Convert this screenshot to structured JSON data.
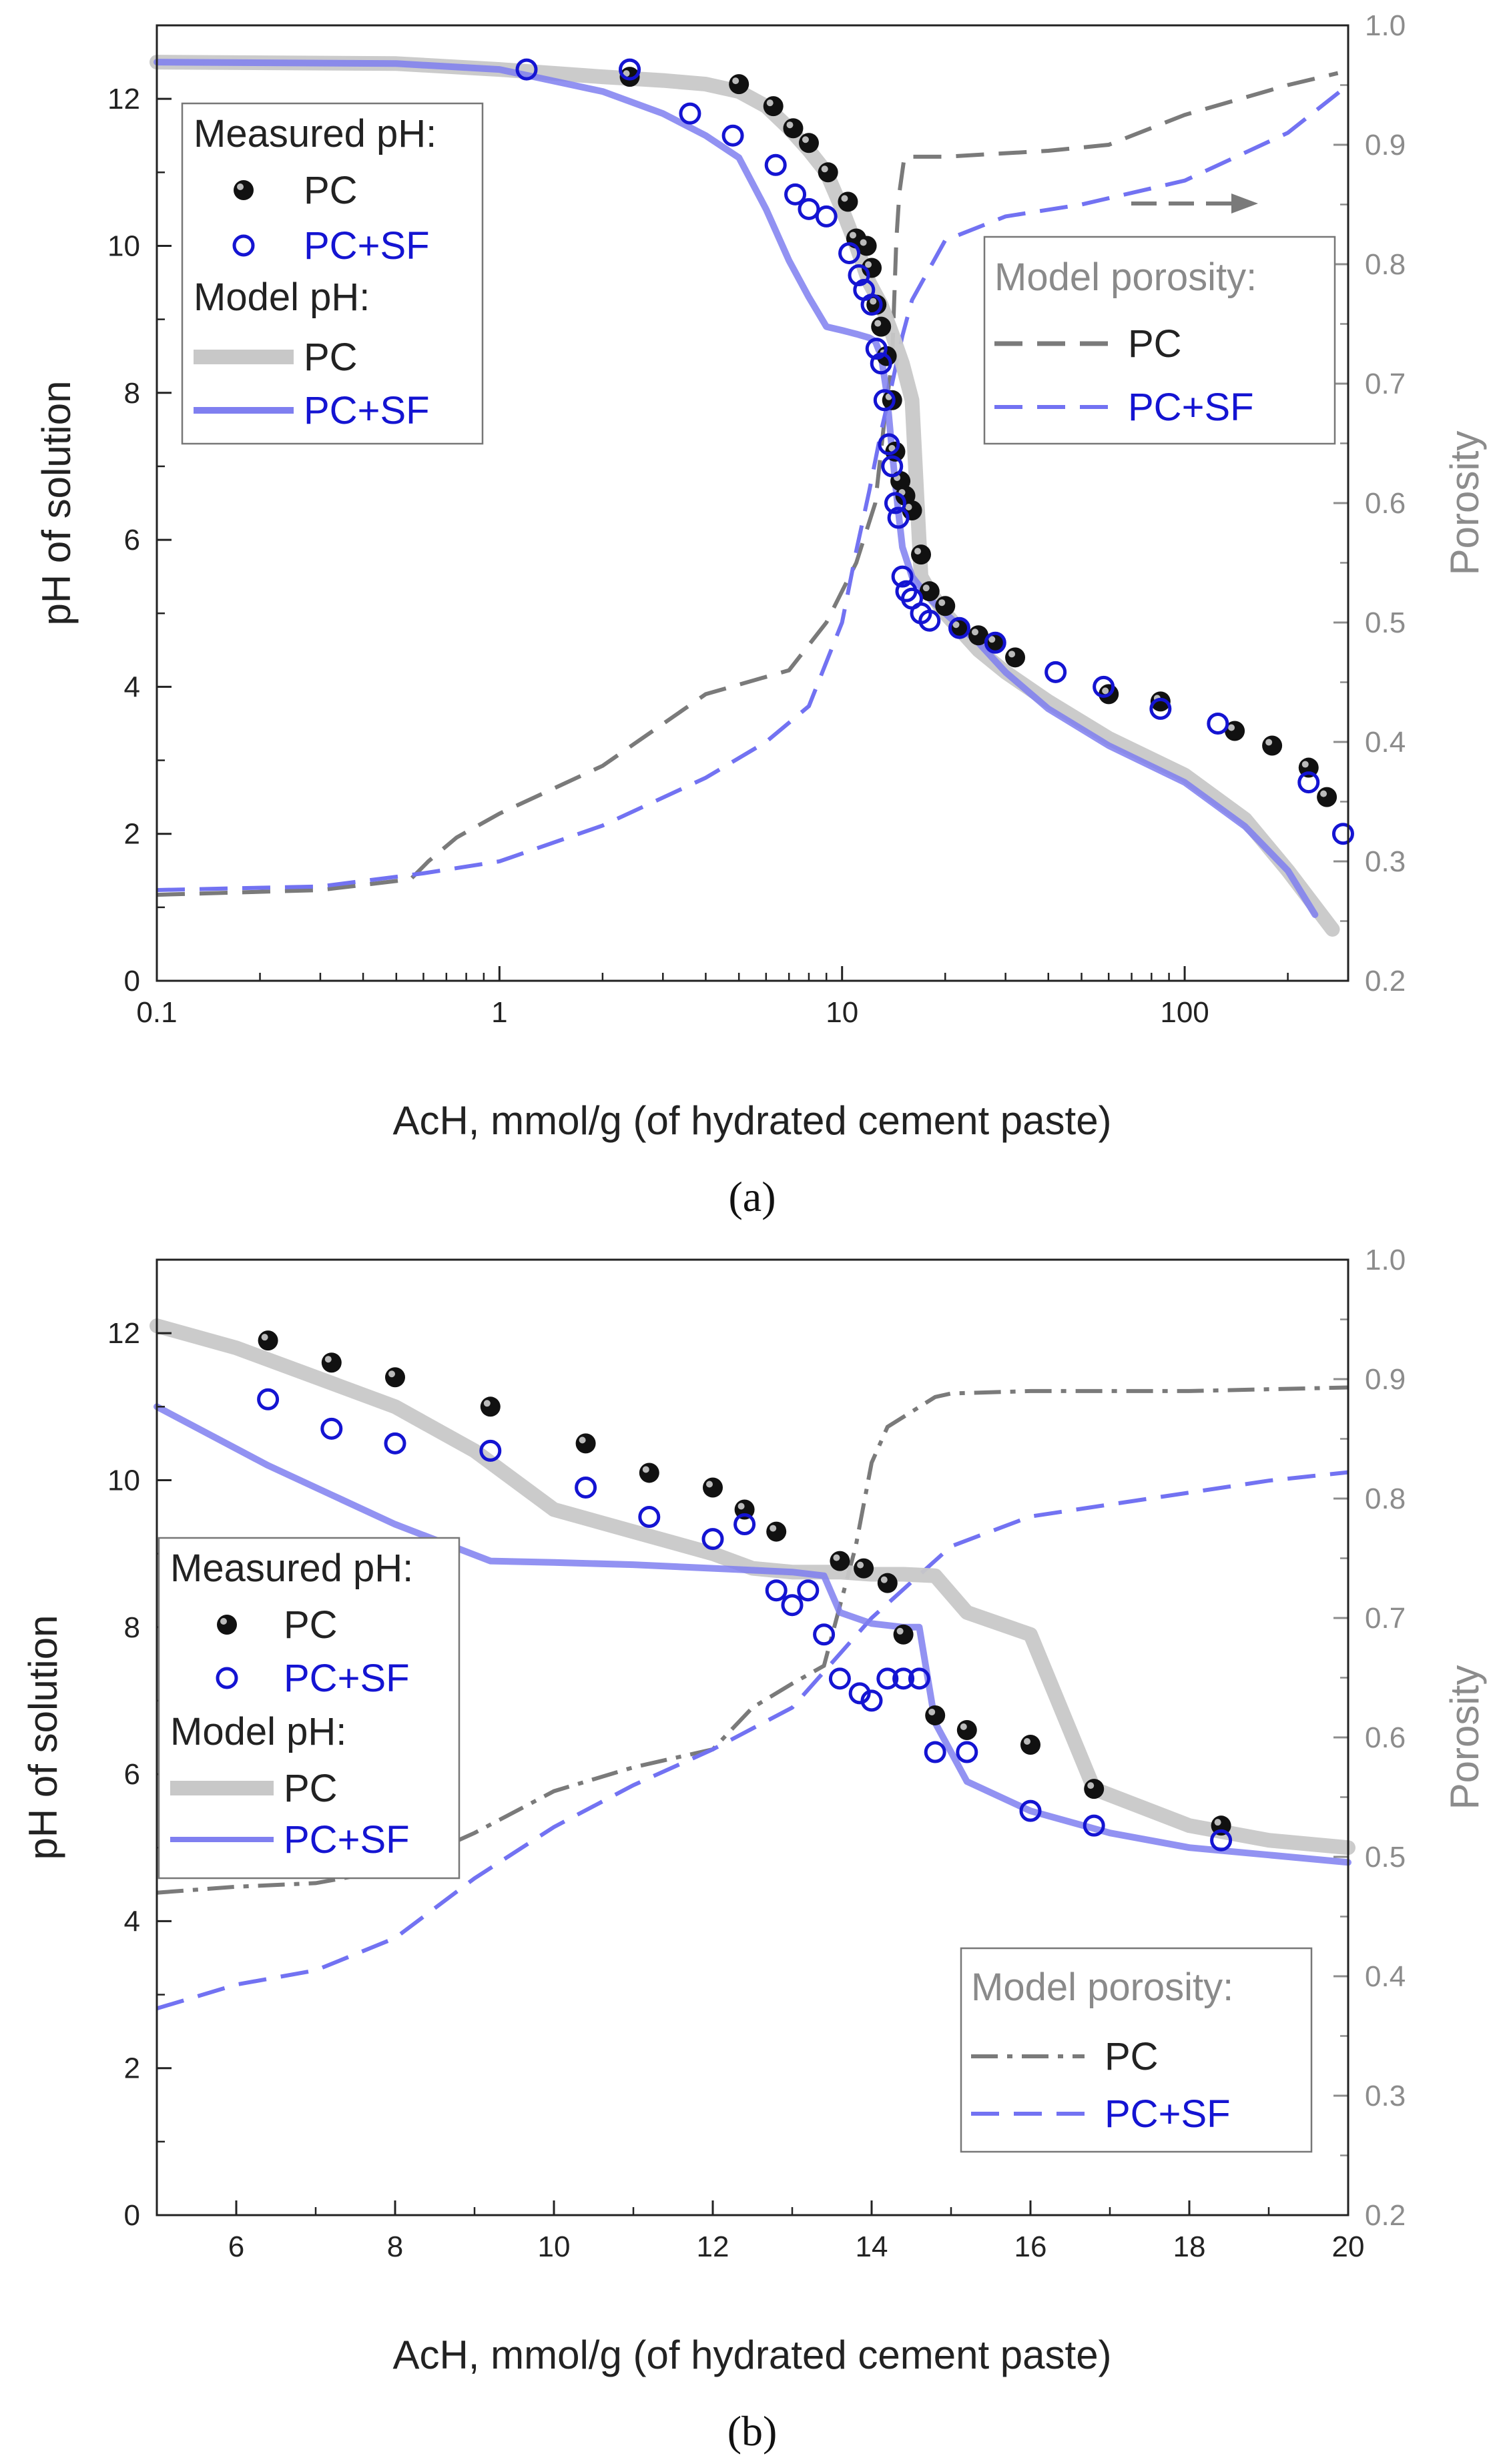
{
  "colors": {
    "pc_model": "#c8c8c8",
    "sf_model": "#7f7ff0",
    "pc_porosity": "#7a7a7a",
    "sf_porosity": "#7272f2",
    "sf_marker": "#1414d2",
    "right_axis": "#8c8c8c",
    "legend_gray": "#8a8a8a"
  },
  "chart_data": [
    {
      "type": "line",
      "panel_label": "(a)",
      "xlabel": "AcH, mmol/g (of hydrated cement paste)",
      "ylabel": "pH of solution",
      "y2label": "Porosity",
      "xscale": "log",
      "xlim": [
        0.1,
        300
      ],
      "ylim": [
        0,
        13
      ],
      "y2lim": [
        0.2,
        1.0
      ],
      "x_ticks": [
        0.1,
        1,
        10,
        100
      ],
      "x_tick_labels": [
        "0.1",
        "1",
        "10",
        "100"
      ],
      "y_ticks": [
        0,
        2,
        4,
        6,
        8,
        10,
        12
      ],
      "y2_ticks": [
        0.2,
        0.3,
        0.4,
        0.5,
        0.6,
        0.7,
        0.8,
        0.9,
        1.0
      ],
      "y2_tick_labels": [
        "0.2",
        "0.3",
        "0.4",
        "0.5",
        "0.6",
        "0.7",
        "0.8",
        "0.9",
        "1.0"
      ],
      "legend_ph": {
        "measured_title": "Measured pH:",
        "model_title": "Model pH:",
        "pc": "PC",
        "pcsf": "PC+SF"
      },
      "legend_porosity": {
        "title": "Model porosity:",
        "pc": "PC",
        "pcsf": "PC+SF"
      },
      "series": [
        {
          "name": "PC",
          "group": "Measured pH",
          "x": [
            2.4,
            5,
            6.3,
            7.2,
            8,
            9.1,
            10.4,
            11,
            11.8,
            12.2,
            12.6,
            13,
            13.5,
            14,
            14.3,
            14.8,
            15.3,
            16,
            17,
            18,
            20,
            22,
            25,
            28,
            32,
            60,
            85,
            140,
            180,
            230,
            260
          ],
          "y": [
            12.3,
            12.2,
            11.9,
            11.6,
            11.4,
            11,
            10.6,
            10.1,
            10,
            9.7,
            9.2,
            8.9,
            8.5,
            7.9,
            7.2,
            6.8,
            6.6,
            6.4,
            5.8,
            5.3,
            5.1,
            4.8,
            4.7,
            4.6,
            4.4,
            3.9,
            3.8,
            3.4,
            3.2,
            2.9,
            2.5
          ]
        },
        {
          "name": "PC+SF",
          "group": "Measured pH",
          "x": [
            1.2,
            2.4,
            3.6,
            4.8,
            6.4,
            7.3,
            8,
            9,
            10.5,
            11.2,
            11.6,
            12.2,
            12.6,
            13,
            13.3,
            13.7,
            14,
            14.3,
            14.6,
            15,
            15.4,
            16,
            17,
            18,
            22,
            28,
            42,
            58,
            85,
            125,
            230,
            290
          ],
          "y": [
            12.4,
            12.4,
            11.8,
            11.5,
            11.1,
            10.7,
            10.5,
            10.4,
            9.9,
            9.6,
            9.4,
            9.2,
            8.6,
            8.4,
            7.9,
            7.3,
            7,
            6.5,
            6.3,
            5.5,
            5.3,
            5.2,
            5,
            4.9,
            4.8,
            4.6,
            4.2,
            4,
            3.7,
            3.5,
            2.7,
            2
          ]
        },
        {
          "name": "PC",
          "group": "Model pH",
          "x": [
            0.1,
            0.5,
            1,
            2,
            3,
            4,
            5,
            6,
            7,
            8,
            9,
            10,
            11,
            12,
            13,
            13.5,
            14,
            15,
            16,
            17,
            18,
            20,
            25,
            30,
            40,
            60,
            100,
            150,
            200,
            270
          ],
          "y": [
            12.5,
            12.48,
            12.4,
            12.3,
            12.25,
            12.2,
            12.1,
            11.9,
            11.6,
            11.3,
            11,
            10.5,
            10,
            9.5,
            9.2,
            9,
            8.8,
            8.4,
            7.9,
            5.5,
            5.3,
            5,
            4.5,
            4.2,
            3.8,
            3.3,
            2.8,
            2.2,
            1.5,
            0.7
          ]
        },
        {
          "name": "PC+SF",
          "group": "Model pH",
          "x": [
            0.1,
            0.5,
            1,
            2,
            3,
            4,
            5,
            6,
            7,
            8,
            9,
            10,
            11,
            12,
            12.5,
            13,
            13.5,
            14,
            14.5,
            15,
            16,
            18,
            20,
            25,
            30,
            40,
            60,
            100,
            150,
            200,
            240
          ],
          "y": [
            12.5,
            12.48,
            12.4,
            12.1,
            11.8,
            11.5,
            11.2,
            10.5,
            9.8,
            9.3,
            8.9,
            8.85,
            8.8,
            8.75,
            8.7,
            8.5,
            8,
            7.2,
            6.5,
            5.9,
            5.5,
            5.2,
            5,
            4.6,
            4.2,
            3.7,
            3.2,
            2.7,
            2.1,
            1.5,
            0.9
          ]
        },
        {
          "name": "PC",
          "group": "Model porosity",
          "x": [
            0.1,
            0.3,
            0.55,
            0.62,
            0.75,
            1,
            2,
            4,
            7,
            9,
            11,
            12.5,
            13.3,
            14,
            14.4,
            14.7,
            15.2,
            16,
            20,
            40,
            60,
            100,
            200,
            280
          ],
          "y": [
            0.272,
            0.276,
            0.285,
            0.3,
            0.32,
            0.34,
            0.38,
            0.44,
            0.46,
            0.5,
            0.55,
            0.6,
            0.67,
            0.72,
            0.82,
            0.86,
            0.89,
            0.89,
            0.89,
            0.895,
            0.9,
            0.925,
            0.95,
            0.96
          ]
        },
        {
          "name": "PC+SF",
          "group": "Model porosity",
          "x": [
            0.1,
            0.3,
            0.6,
            1,
            2,
            4,
            6,
            8,
            10,
            11,
            12,
            13,
            14,
            15,
            16,
            20,
            30,
            50,
            100,
            200,
            300
          ],
          "y": [
            0.276,
            0.279,
            0.29,
            0.3,
            0.33,
            0.37,
            0.4,
            0.43,
            0.5,
            0.56,
            0.61,
            0.66,
            0.7,
            0.74,
            0.77,
            0.82,
            0.84,
            0.85,
            0.87,
            0.91,
            0.95
          ]
        }
      ]
    },
    {
      "type": "line",
      "panel_label": "(b)",
      "xlabel": "AcH, mmol/g (of hydrated cement paste)",
      "ylabel": "pH of solution",
      "y2label": "Porosity",
      "xscale": "linear",
      "xlim": [
        5,
        20
      ],
      "ylim": [
        0,
        13
      ],
      "y2lim": [
        0.2,
        1.0
      ],
      "x_ticks": [
        6,
        8,
        10,
        12,
        14,
        16,
        18,
        20
      ],
      "x_tick_labels": [
        "6",
        "8",
        "10",
        "12",
        "14",
        "16",
        "18",
        "20"
      ],
      "y_ticks": [
        0,
        2,
        4,
        6,
        8,
        10,
        12
      ],
      "y2_ticks": [
        0.2,
        0.3,
        0.4,
        0.5,
        0.6,
        0.7,
        0.8,
        0.9,
        1.0
      ],
      "y2_tick_labels": [
        "0.2",
        "0.3",
        "0.4",
        "0.5",
        "0.6",
        "0.7",
        "0.8",
        "0.9",
        "1.0"
      ],
      "legend_ph": {
        "measured_title": "Measured pH:",
        "model_title": "Model pH:",
        "pc": "PC",
        "pcsf": "PC+SF"
      },
      "legend_porosity": {
        "title": "Model porosity:",
        "pc": "PC",
        "pcsf": "PC+SF"
      },
      "series": [
        {
          "name": "PC",
          "group": "Measured pH",
          "x": [
            6.4,
            7.2,
            8,
            9.2,
            10.4,
            11.2,
            12,
            12.4,
            12.8,
            13.6,
            13.9,
            14.2,
            14.4,
            14.8,
            15.2,
            16,
            16.8,
            18.4
          ],
          "y": [
            11.9,
            11.6,
            11.4,
            11,
            10.5,
            10.1,
            9.9,
            9.6,
            9.3,
            8.9,
            8.8,
            8.6,
            7.9,
            6.8,
            6.6,
            6.4,
            5.8,
            5.3
          ]
        },
        {
          "name": "PC+SF",
          "group": "Measured pH",
          "x": [
            6.4,
            7.2,
            8,
            9.2,
            10.4,
            11.2,
            12,
            12.4,
            12.8,
            13,
            13.2,
            13.4,
            13.6,
            13.85,
            14,
            14.2,
            14.4,
            14.6,
            14.8,
            15.2,
            16,
            16.8,
            18.4
          ],
          "y": [
            11.1,
            10.7,
            10.5,
            10.4,
            9.9,
            9.5,
            9.2,
            9.4,
            8.5,
            8.3,
            8.5,
            7.9,
            7.3,
            7.1,
            7,
            7.3,
            7.3,
            7.3,
            6.3,
            6.3,
            5.5,
            5.3,
            5.1
          ]
        },
        {
          "name": "PC",
          "group": "Model pH",
          "x": [
            5,
            6,
            7,
            8,
            9,
            10,
            11,
            12,
            12.5,
            13,
            13.4,
            13.6,
            14,
            14.4,
            14.8,
            15.2,
            16,
            16.8,
            18,
            19,
            20
          ],
          "y": [
            12.1,
            11.8,
            11.4,
            11,
            10.4,
            9.6,
            9.3,
            9,
            8.8,
            8.75,
            8.75,
            8.75,
            8.72,
            8.72,
            8.7,
            8.2,
            7.9,
            5.8,
            5.3,
            5.1,
            5
          ]
        },
        {
          "name": "PC+SF",
          "group": "Model pH",
          "x": [
            5,
            6.4,
            7.2,
            8,
            9.2,
            10,
            11,
            12,
            13,
            13.4,
            13.6,
            14,
            14.4,
            14.6,
            14.8,
            15.2,
            16,
            17,
            18,
            19,
            20
          ],
          "y": [
            11,
            10.2,
            9.8,
            9.4,
            8.9,
            8.88,
            8.85,
            8.8,
            8.75,
            8.7,
            8.2,
            8.05,
            8,
            8,
            6.7,
            5.9,
            5.5,
            5.2,
            5,
            4.9,
            4.8
          ]
        },
        {
          "name": "PC",
          "group": "Model porosity",
          "x": [
            5,
            6,
            7,
            8,
            9,
            10,
            11,
            12,
            12.5,
            13,
            13.4,
            13.8,
            14,
            14.2,
            14.8,
            15,
            16,
            18,
            20
          ],
          "y": [
            0.47,
            0.475,
            0.478,
            0.49,
            0.52,
            0.555,
            0.575,
            0.59,
            0.625,
            0.645,
            0.66,
            0.76,
            0.83,
            0.86,
            0.885,
            0.888,
            0.89,
            0.89,
            0.893
          ]
        },
        {
          "name": "PC+SF",
          "group": "Model porosity",
          "x": [
            5,
            6,
            7,
            8,
            9,
            10,
            11,
            12,
            13,
            14,
            15,
            16,
            17,
            18,
            19,
            20
          ],
          "y": [
            0.373,
            0.393,
            0.405,
            0.432,
            0.482,
            0.525,
            0.56,
            0.59,
            0.625,
            0.7,
            0.76,
            0.785,
            0.795,
            0.805,
            0.815,
            0.822
          ]
        }
      ]
    }
  ]
}
